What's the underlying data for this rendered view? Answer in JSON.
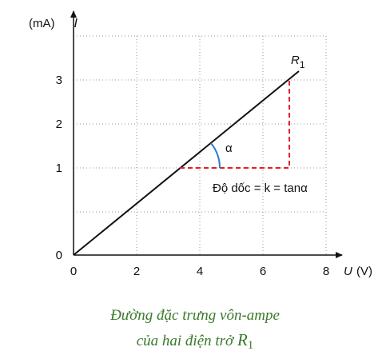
{
  "axes": {
    "y_label_symbol": "I",
    "y_label_unit": "(mA)",
    "x_label_symbol": "U",
    "x_label_unit": "(V)",
    "x_ticks": [
      "0",
      "2",
      "4",
      "6",
      "8"
    ],
    "y_ticks": [
      "0",
      "1",
      "2",
      "3"
    ]
  },
  "line_label": {
    "symbol": "R",
    "subscript": "1"
  },
  "angle_label": "α",
  "slope_note": "Độ dốc = k = tanα",
  "caption": {
    "line1": "Đường đặc trưng vôn-ampe",
    "line2": "của hai điện trở",
    "symbol": "R",
    "subscript": "1"
  }
}
